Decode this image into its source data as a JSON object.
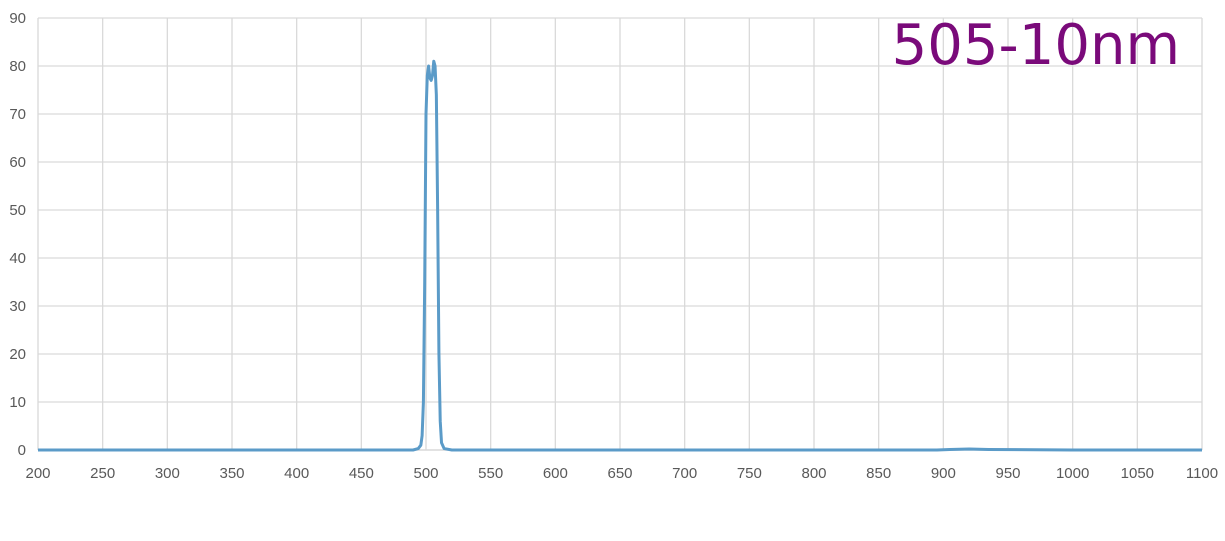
{
  "chart_data": {
    "type": "line",
    "title": "505-10nm",
    "xlabel": "",
    "ylabel": "",
    "xlim": [
      200,
      1100
    ],
    "ylim": [
      0,
      90
    ],
    "grid": true,
    "legend": "none",
    "xticks": [
      200,
      250,
      300,
      350,
      400,
      450,
      500,
      550,
      600,
      650,
      700,
      750,
      800,
      850,
      900,
      950,
      1000,
      1050,
      1100
    ],
    "yticks": [
      0,
      10,
      20,
      30,
      40,
      50,
      60,
      70,
      80,
      90
    ],
    "colors": {
      "series": "#5b9bc8",
      "grid": "#d9d9d9",
      "title": "#7a0a7a",
      "tick": "#595959"
    },
    "series": [
      {
        "values": [
          [
            200,
            0
          ],
          [
            300,
            0
          ],
          [
            400,
            0
          ],
          [
            480,
            0
          ],
          [
            490,
            0
          ],
          [
            494,
            0.3
          ],
          [
            496,
            1
          ],
          [
            497,
            3
          ],
          [
            498,
            10
          ],
          [
            499,
            35
          ],
          [
            500,
            70
          ],
          [
            501,
            78
          ],
          [
            502,
            80
          ],
          [
            503,
            77.5
          ],
          [
            504,
            77
          ],
          [
            505,
            78
          ],
          [
            506,
            81
          ],
          [
            507,
            80
          ],
          [
            508,
            74
          ],
          [
            509,
            50
          ],
          [
            510,
            20
          ],
          [
            511,
            6
          ],
          [
            512,
            1.5
          ],
          [
            514,
            0.3
          ],
          [
            520,
            0
          ],
          [
            600,
            0
          ],
          [
            700,
            0
          ],
          [
            800,
            0
          ],
          [
            895,
            0
          ],
          [
            905,
            0.1
          ],
          [
            920,
            0.2
          ],
          [
            935,
            0.1
          ],
          [
            1000,
            0
          ],
          [
            1100,
            0
          ]
        ]
      }
    ]
  }
}
